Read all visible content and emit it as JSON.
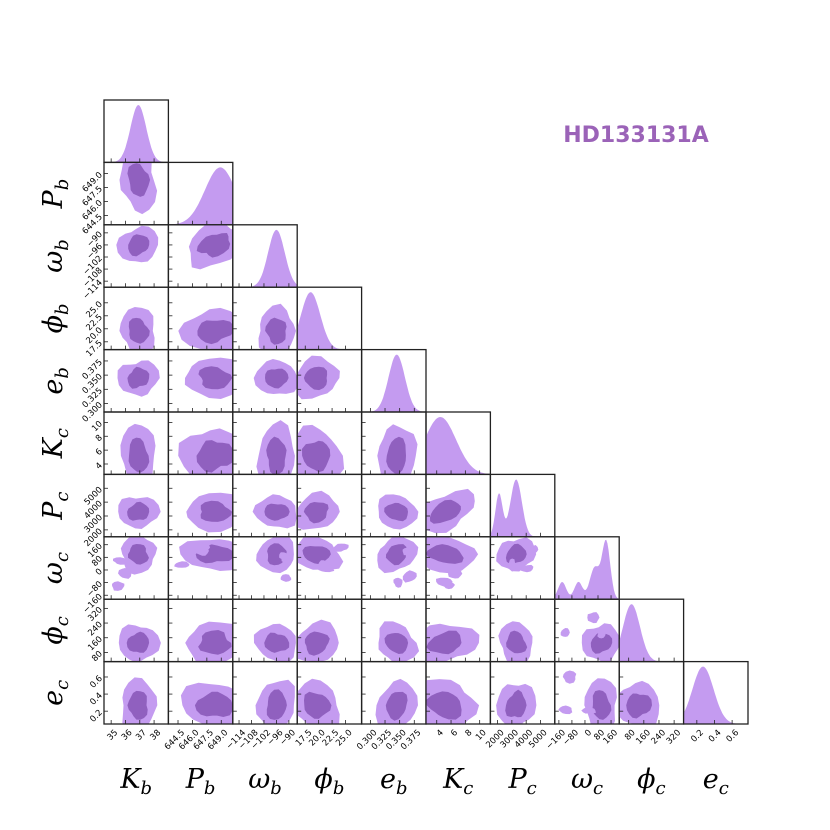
{
  "title": "HD133131A",
  "colors": {
    "light": "#c49bf0",
    "dark": "#9060bf",
    "frame": "#222222"
  },
  "chart_data": {
    "type": "corner",
    "parameters": [
      {
        "symbol": "K",
        "sub": "b",
        "ticks": [
          "35",
          "36",
          "37",
          "38"
        ],
        "range": [
          34.5,
          39.0
        ]
      },
      {
        "symbol": "P",
        "sub": "b",
        "ticks": [
          "644.5",
          "646.0",
          "647.5",
          "649.0"
        ],
        "range": [
          643.5,
          650.2
        ]
      },
      {
        "symbol": "ω",
        "sub": "b",
        "ticks": [
          "−114",
          "−108",
          "−102",
          "−96",
          "−90"
        ],
        "range": [
          -117,
          -86
        ]
      },
      {
        "symbol": "ϕ",
        "sub": "b",
        "ticks": [
          "17.5",
          "20.0",
          "22.5",
          "25.0"
        ],
        "range": [
          16,
          28
        ]
      },
      {
        "symbol": "e",
        "sub": "b",
        "ticks": [
          "0.300",
          "0.325",
          "0.350",
          "0.375"
        ],
        "range": [
          0.285,
          0.395
        ]
      },
      {
        "symbol": "K",
        "sub": "c",
        "ticks": [
          "4",
          "6",
          "8",
          "10"
        ],
        "range": [
          2.5,
          11.5
        ]
      },
      {
        "symbol": "P",
        "sub": "c",
        "ticks": [
          "2000",
          "3000",
          "4000",
          "5000"
        ],
        "range": [
          1500,
          6000
        ]
      },
      {
        "symbol": "ω",
        "sub": "c",
        "ticks": [
          "−160",
          "−80",
          "0",
          "80",
          "160"
        ],
        "range": [
          -185,
          210
        ]
      },
      {
        "symbol": "ϕ",
        "sub": "c",
        "ticks": [
          "80",
          "160",
          "240",
          "320"
        ],
        "range": [
          30,
          370
        ]
      },
      {
        "symbol": "e",
        "sub": "c",
        "ticks": [
          "0.2",
          "0.4",
          "0.6"
        ],
        "range": [
          0.05,
          0.78
        ]
      }
    ],
    "marginals": [
      {
        "peaks": [
          [
            36.9,
            1.0,
            0.55
          ]
        ]
      },
      {
        "peaks": [
          [
            648.9,
            1.0,
            1.6
          ]
        ]
      },
      {
        "peaks": [
          [
            -96,
            1.0,
            4.0
          ]
        ]
      },
      {
        "peaks": [
          [
            18.5,
            1.0,
            1.8
          ]
        ]
      },
      {
        "peaks": [
          [
            0.345,
            1.0,
            0.014
          ]
        ]
      },
      {
        "peaks": [
          [
            4.5,
            1.0,
            2.2
          ]
        ]
      },
      {
        "peaks": [
          [
            2100,
            0.75,
            250
          ],
          [
            3300,
            1.0,
            400
          ]
        ]
      },
      {
        "peaks": [
          [
            -140,
            0.3,
            25
          ],
          [
            -40,
            0.3,
            25
          ],
          [
            60,
            0.55,
            30
          ],
          [
            130,
            1.0,
            25
          ]
        ]
      },
      {
        "peaks": [
          [
            95,
            1.0,
            45
          ]
        ]
      },
      {
        "peaks": [
          [
            0.27,
            1.0,
            0.12
          ]
        ]
      }
    ]
  }
}
